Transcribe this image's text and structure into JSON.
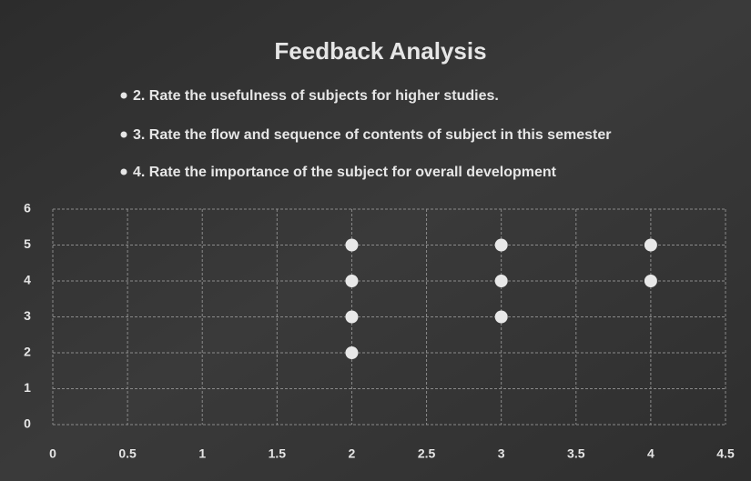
{
  "chart_data": {
    "type": "scatter",
    "title": "Feedback Analysis",
    "bullets": [
      "2. Rate the usefulness of subjects for higher studies.",
      "3. Rate the flow and sequence of contents of subject in this semester",
      "4. Rate the importance of the subject for overall development"
    ],
    "x": [
      2,
      2,
      2,
      2,
      3,
      3,
      3,
      4,
      4
    ],
    "y": [
      5,
      4,
      3,
      2,
      5,
      4,
      3,
      5,
      4
    ],
    "color": "#e8e8e8",
    "xlim": [
      0,
      4.5
    ],
    "xticks": [
      0,
      0.5,
      1,
      1.5,
      2,
      2.5,
      3,
      3.5,
      4,
      4.5
    ],
    "ylim": [
      0,
      6
    ],
    "yticks": [
      0,
      1,
      2,
      3,
      4,
      5,
      6
    ],
    "grid": true
  }
}
